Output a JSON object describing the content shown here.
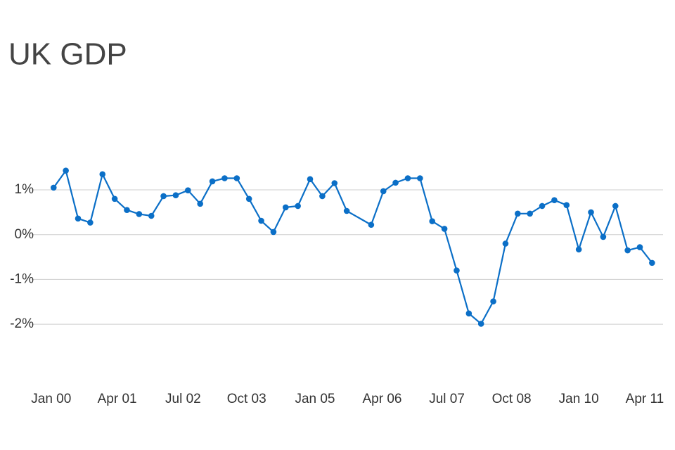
{
  "chart_data": {
    "type": "line",
    "title": "UK GDP",
    "x": [
      0,
      1,
      2,
      3,
      4,
      5,
      6,
      7,
      8,
      9,
      10,
      11,
      12,
      13,
      14,
      15,
      16,
      17,
      18,
      19,
      20,
      21,
      22,
      23,
      24,
      26,
      27,
      28,
      29,
      30,
      31,
      32,
      33,
      34,
      35,
      36,
      37,
      38,
      39,
      40,
      41,
      42,
      43,
      44,
      45,
      46,
      47,
      48,
      49
    ],
    "series": [
      {
        "name": "UK GDP",
        "color": "#0b6fc7",
        "values": [
          1.05,
          1.43,
          0.36,
          0.27,
          1.35,
          0.8,
          0.55,
          0.46,
          0.42,
          0.86,
          0.88,
          0.99,
          0.69,
          1.19,
          1.26,
          1.26,
          0.8,
          0.31,
          0.06,
          0.61,
          0.64,
          1.24,
          0.86,
          1.15,
          0.53,
          0.22,
          0.97,
          1.16,
          1.26,
          1.26,
          0.3,
          0.13,
          -0.8,
          -1.76,
          -1.99,
          -1.49,
          -0.2,
          0.47,
          0.47,
          0.64,
          0.77,
          0.66,
          -0.33,
          0.5,
          -0.05,
          0.64,
          -0.35,
          -0.28,
          -0.63
        ]
      }
    ],
    "xlim": [
      -1.8,
      49.9
    ],
    "xticks": [
      {
        "value": -0.2,
        "label": "Jan 00"
      },
      {
        "value": 5.2,
        "label": "Apr 01"
      },
      {
        "value": 10.6,
        "label": "Jul 02"
      },
      {
        "value": 15.8,
        "label": "Oct 03"
      },
      {
        "value": 21.4,
        "label": "Jan 05"
      },
      {
        "value": 26.9,
        "label": "Apr 06"
      },
      {
        "value": 32.2,
        "label": "Jul 07"
      },
      {
        "value": 37.5,
        "label": "Oct 08"
      },
      {
        "value": 43.0,
        "label": "Jan 10"
      },
      {
        "value": 48.4,
        "label": "Apr 11"
      }
    ],
    "ylim": [
      -3.05,
      2.1
    ],
    "yticks": [
      {
        "value": 1,
        "label": "1%"
      },
      {
        "value": 0,
        "label": "0%"
      },
      {
        "value": -1,
        "label": "-1%"
      },
      {
        "value": -2,
        "label": "-2%"
      }
    ],
    "grid": true
  }
}
